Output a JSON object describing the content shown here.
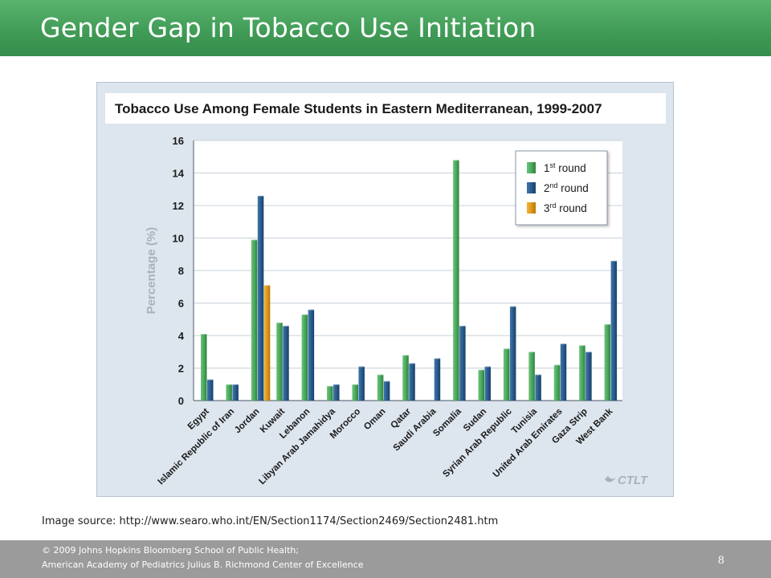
{
  "slide": {
    "title": "Gender Gap in Tobacco Use Initiation",
    "image_source": "Image source: http://www.searo.who.int/EN/Section1174/Section2469/Section2481.htm",
    "footer_line1": "© 2009 Johns Hopkins Bloomberg School of Public Health;",
    "footer_line2": "American Academy of Pediatrics  Julius B. Richmond Center of Excellence",
    "page_number": "8",
    "logo_text": "CTLT"
  },
  "chart_data": {
    "type": "bar",
    "title": "Tobacco Use Among Female Students in Eastern Mediterranean, 1999-2007",
    "ylabel": "Percentage (%)",
    "xlabel": "",
    "ylim": [
      0,
      16
    ],
    "yticks": [
      0,
      2,
      4,
      6,
      8,
      10,
      12,
      14,
      16
    ],
    "grid": true,
    "legend_position": "top-right",
    "categories": [
      "Egypt",
      "Islamic Republic of Iran",
      "Jordan",
      "Kuwait",
      "Lebanon",
      "Libyan Arab Jamahidya",
      "Morocco",
      "Oman",
      "Qatar",
      "Saudi Arabia",
      "Somalia",
      "Sudan",
      "Syrian Arab Republic",
      "Tunisia",
      "United Arab Emirates",
      "Gaza Strip",
      "West Bank"
    ],
    "series": [
      {
        "name": "1st round",
        "color": "#4eac5e",
        "values": [
          4.1,
          1.0,
          9.9,
          4.8,
          5.3,
          0.9,
          1.0,
          1.6,
          2.8,
          null,
          14.8,
          1.9,
          3.2,
          3.0,
          2.2,
          3.4,
          4.7
        ]
      },
      {
        "name": "2nd round",
        "color": "#2a5d91",
        "values": [
          1.3,
          1.0,
          12.6,
          4.6,
          5.6,
          1.0,
          2.1,
          1.2,
          2.3,
          2.6,
          4.6,
          2.1,
          5.8,
          1.6,
          3.5,
          3.0,
          8.6
        ]
      },
      {
        "name": "3rd round",
        "color": "#e09a1c",
        "values": [
          null,
          null,
          7.1,
          null,
          null,
          null,
          null,
          null,
          null,
          null,
          null,
          null,
          null,
          null,
          null,
          null,
          null
        ]
      }
    ],
    "legend": [
      {
        "label": "1st round",
        "base": "1",
        "sup": "st",
        "rest": " round"
      },
      {
        "label": "2nd round",
        "base": "2",
        "sup": "nd",
        "rest": " round"
      },
      {
        "label": "3rd round",
        "base": "3",
        "sup": "rd",
        "rest": " round"
      }
    ]
  }
}
